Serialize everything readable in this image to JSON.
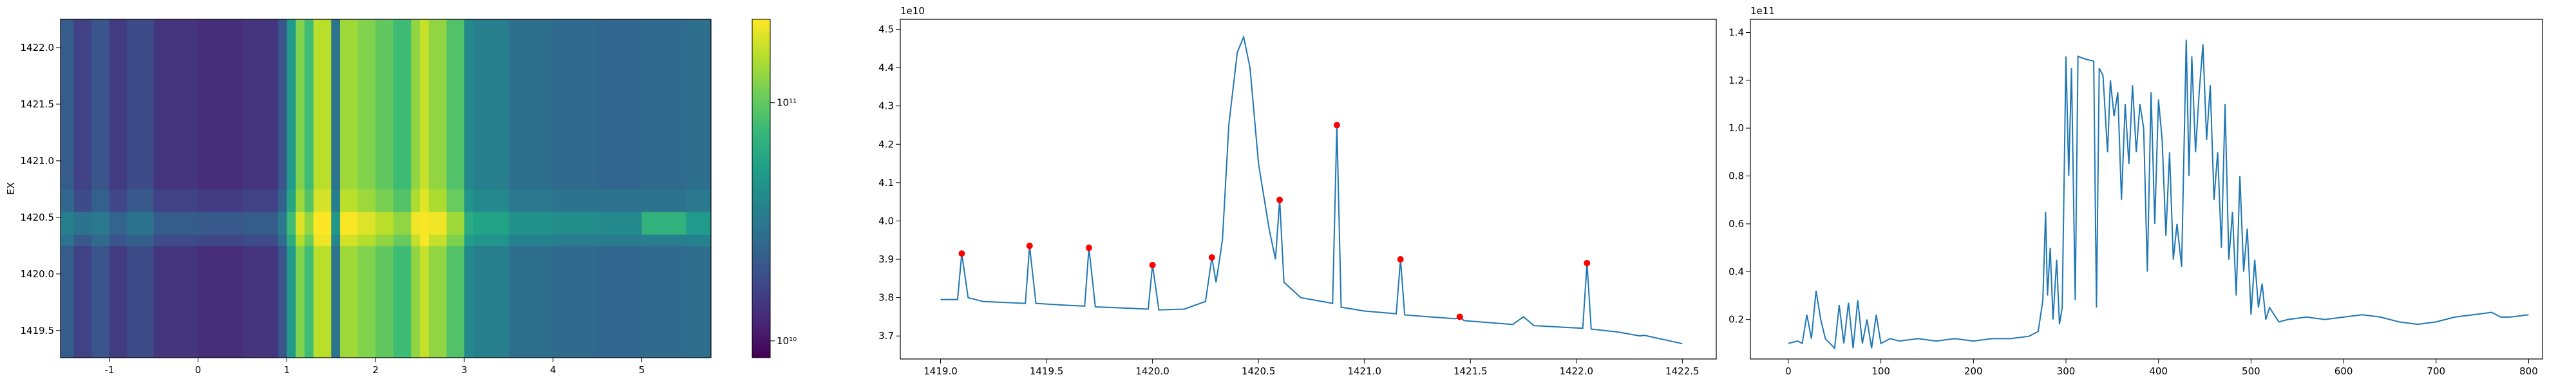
{
  "chart_data": [
    {
      "type": "heatmap",
      "colormap": "viridis",
      "log_color": true,
      "ylabel": "EX",
      "xbins": [
        -1.55,
        -1.4,
        -1.2,
        -1.0,
        -0.8,
        -0.5,
        0,
        0.5,
        0.9,
        1.0,
        1.1,
        1.2,
        1.3,
        1.5,
        1.6,
        1.8,
        2.0,
        2.2,
        2.4,
        2.5,
        2.6,
        2.8,
        3.0,
        3.1,
        3.5,
        4.0,
        4.5,
        5.0,
        5.5,
        5.78
      ],
      "ybins": [
        1419.26,
        1420.25,
        1420.35,
        1420.55,
        1420.75,
        1422.25
      ],
      "z": [
        [
          22000000000.0,
          16000000000.0,
          20000000000.0,
          15000000000.0,
          18000000000.0,
          14000000000.0,
          13000000000.0,
          14000000000.0,
          20000000000.0,
          50000000000.0,
          120000000000.0,
          80000000000.0,
          160000000000.0,
          30000000000.0,
          140000000000.0,
          120000000000.0,
          100000000000.0,
          80000000000.0,
          130000000000.0,
          170000000000.0,
          130000000000.0,
          90000000000.0,
          40000000000.0,
          35000000000.0,
          28000000000.0,
          26000000000.0,
          25000000000.0,
          26000000000.0,
          28000000000.0
        ],
        [
          29000000000.0,
          21000000000.0,
          26000000000.0,
          20000000000.0,
          23000000000.0,
          18000000000.0,
          17000000000.0,
          18000000000.0,
          26000000000.0,
          65000000000.0,
          156000000000.0,
          104000000000.0,
          208000000000.0,
          39000000000.0,
          182000000000.0,
          156000000000.0,
          130000000000.0,
          104000000000.0,
          169000000000.0,
          221000000000.0,
          169000000000.0,
          117000000000.0,
          52000000000.0,
          46000000000.0,
          36000000000.0,
          34000000000.0,
          33000000000.0,
          34000000000.0,
          36000000000.0
        ],
        [
          35000000000.0,
          30000000000.0,
          32000000000.0,
          24000000000.0,
          29000000000.0,
          22000000000.0,
          21000000000.0,
          22000000000.0,
          32000000000.0,
          80000000000.0,
          190000000000.0,
          130000000000.0,
          250000000000.0,
          48000000000.0,
          220000000000.0,
          190000000000.0,
          160000000000.0,
          130000000000.0,
          210000000000.0,
          220000000000.0,
          210000000000.0,
          140000000000.0,
          64000000000.0,
          56000000000.0,
          45000000000.0,
          42000000000.0,
          40000000000.0,
          70000000000.0,
          50000000000.0
        ],
        [
          25000000000.0,
          18000000000.0,
          23000000000.0,
          17000000000.0,
          21000000000.0,
          16000000000.0,
          15000000000.0,
          16000000000.0,
          23000000000.0,
          58000000000.0,
          138000000000.0,
          92000000000.0,
          184000000000.0,
          35000000000.0,
          161000000000.0,
          138000000000.0,
          115000000000.0,
          92000000000.0,
          150000000000.0,
          196000000000.0,
          150000000000.0,
          104000000000.0,
          46000000000.0,
          40000000000.0,
          32000000000.0,
          30000000000.0,
          29000000000.0,
          30000000000.0,
          32000000000.0
        ],
        [
          22000000000.0,
          16000000000.0,
          20000000000.0,
          15000000000.0,
          18000000000.0,
          14000000000.0,
          13000000000.0,
          14000000000.0,
          20000000000.0,
          50000000000.0,
          120000000000.0,
          80000000000.0,
          160000000000.0,
          30000000000.0,
          140000000000.0,
          120000000000.0,
          100000000000.0,
          80000000000.0,
          130000000000.0,
          170000000000.0,
          130000000000.0,
          90000000000.0,
          40000000000.0,
          35000000000.0,
          28000000000.0,
          26000000000.0,
          25000000000.0,
          26000000000.0,
          28000000000.0
        ]
      ],
      "xlim": [
        -1.55,
        5.78
      ],
      "ylim": [
        1419.26,
        1422.25
      ],
      "xticks": [
        -1,
        0,
        1,
        2,
        3,
        4,
        5
      ],
      "yticks": [
        1419.5,
        {
          "value": 1420,
          "label": "1420.0"
        },
        1420.5,
        {
          "value": 1421,
          "label": "1421.0"
        },
        1421.5,
        {
          "value": 1422,
          "label": "1422.0"
        }
      ],
      "clim": [
        8500000000.0,
        224000000000.0
      ],
      "colorbar_ticks": [
        {
          "value": 10000000000.0,
          "label": "10¹⁰"
        },
        {
          "value": 100000000000.0,
          "label": "10¹¹"
        }
      ]
    },
    {
      "type": "line",
      "color": "#1f77b4",
      "offset_label": "1e10",
      "x": [
        1419.0,
        1419.08,
        1419.1,
        1419.13,
        1419.2,
        1419.4,
        1419.42,
        1419.45,
        1419.6,
        1419.68,
        1419.7,
        1419.73,
        1419.9,
        1419.98,
        1420.0,
        1420.03,
        1420.15,
        1420.25,
        1420.28,
        1420.3,
        1420.33,
        1420.36,
        1420.4,
        1420.43,
        1420.46,
        1420.5,
        1420.55,
        1420.58,
        1420.6,
        1420.62,
        1420.7,
        1420.8,
        1420.85,
        1420.87,
        1420.89,
        1421.0,
        1421.15,
        1421.17,
        1421.19,
        1421.3,
        1421.43,
        1421.45,
        1421.47,
        1421.7,
        1421.75,
        1421.8,
        1422.03,
        1422.05,
        1422.07,
        1422.2,
        1422.3,
        1422.32,
        1422.5
      ],
      "values": [
        3.795,
        3.795,
        3.915,
        3.8,
        3.79,
        3.785,
        3.935,
        3.785,
        3.78,
        3.778,
        3.93,
        3.776,
        3.772,
        3.77,
        3.885,
        3.768,
        3.77,
        3.79,
        3.905,
        3.84,
        3.95,
        4.25,
        4.44,
        4.48,
        4.4,
        4.15,
        3.98,
        3.9,
        4.055,
        3.84,
        3.8,
        3.79,
        3.785,
        4.25,
        3.775,
        3.765,
        3.758,
        3.9,
        3.755,
        3.75,
        3.745,
        3.75,
        3.74,
        3.73,
        3.75,
        3.727,
        3.72,
        3.89,
        3.718,
        3.71,
        3.7,
        3.702,
        3.68
      ],
      "markers": {
        "color": "#ff0000",
        "x": [
          1419.1,
          1419.42,
          1419.7,
          1420.0,
          1420.28,
          1420.6,
          1420.87,
          1421.17,
          1421.45,
          1422.05
        ],
        "values": [
          3.915,
          3.935,
          3.93,
          3.885,
          3.905,
          4.055,
          4.25,
          3.9,
          3.75,
          3.89
        ]
      },
      "xlim": [
        1418.81,
        1422.66
      ],
      "ylim": [
        3.64,
        4.526
      ],
      "xticks": [
        {
          "value": 1419,
          "label": "1419.0"
        },
        1419.5,
        {
          "value": 1420,
          "label": "1420.0"
        },
        1420.5,
        {
          "value": 1421,
          "label": "1421.0"
        },
        1421.5,
        {
          "value": 1422,
          "label": "1422.0"
        },
        1422.5
      ],
      "yticks": [
        3.7,
        3.8,
        3.9,
        {
          "value": 4,
          "label": "4.0"
        },
        4.1,
        4.2,
        4.3,
        4.4,
        4.5
      ]
    },
    {
      "type": "line",
      "color": "#1f77b4",
      "offset_label": "1e11",
      "x": [
        0,
        10,
        15,
        20,
        25,
        30,
        35,
        40,
        45,
        50,
        55,
        60,
        65,
        70,
        75,
        80,
        85,
        90,
        95,
        100,
        110,
        120,
        140,
        160,
        180,
        200,
        220,
        240,
        260,
        270,
        275,
        278,
        280,
        283,
        286,
        290,
        293,
        296,
        300,
        303,
        306,
        310,
        313,
        320,
        330,
        333,
        336,
        340,
        345,
        348,
        352,
        356,
        360,
        364,
        368,
        372,
        376,
        380,
        384,
        388,
        392,
        396,
        400,
        404,
        408,
        412,
        416,
        420,
        425,
        430,
        433,
        436,
        440,
        444,
        448,
        452,
        456,
        460,
        464,
        468,
        472,
        476,
        480,
        484,
        488,
        492,
        496,
        500,
        504,
        508,
        512,
        516,
        520,
        530,
        540,
        560,
        580,
        600,
        620,
        640,
        660,
        680,
        700,
        720,
        740,
        760,
        770,
        780,
        800
      ],
      "values": [
        0.1,
        0.11,
        0.1,
        0.22,
        0.12,
        0.32,
        0.2,
        0.12,
        0.1,
        0.08,
        0.26,
        0.1,
        0.27,
        0.08,
        0.28,
        0.1,
        0.2,
        0.08,
        0.22,
        0.1,
        0.12,
        0.11,
        0.12,
        0.11,
        0.12,
        0.11,
        0.12,
        0.12,
        0.13,
        0.15,
        0.28,
        0.65,
        0.3,
        0.5,
        0.2,
        0.45,
        0.18,
        0.25,
        1.3,
        0.8,
        1.25,
        0.28,
        1.3,
        1.29,
        1.28,
        0.25,
        1.25,
        1.22,
        0.9,
        1.2,
        1.05,
        1.15,
        0.7,
        1.1,
        0.85,
        1.18,
        0.9,
        1.1,
        1.0,
        0.4,
        1.15,
        0.6,
        1.12,
        0.95,
        0.55,
        0.9,
        0.45,
        0.6,
        0.42,
        1.37,
        0.8,
        1.3,
        0.9,
        1.15,
        1.35,
        0.95,
        1.18,
        0.7,
        0.9,
        0.5,
        1.1,
        0.45,
        0.65,
        0.3,
        0.8,
        0.4,
        0.58,
        0.22,
        0.45,
        0.25,
        0.35,
        0.2,
        0.25,
        0.19,
        0.2,
        0.21,
        0.2,
        0.21,
        0.22,
        0.21,
        0.19,
        0.18,
        0.19,
        0.21,
        0.22,
        0.23,
        0.21,
        0.21,
        0.22
      ],
      "xlim": [
        -41,
        815
      ],
      "ylim": [
        0.035,
        1.455
      ],
      "xticks": [
        0,
        100,
        200,
        300,
        400,
        500,
        600,
        700,
        800
      ],
      "yticks": [
        0.2,
        0.4,
        0.6,
        0.8,
        {
          "value": 1,
          "label": "1.0"
        },
        1.2,
        1.4
      ]
    }
  ]
}
